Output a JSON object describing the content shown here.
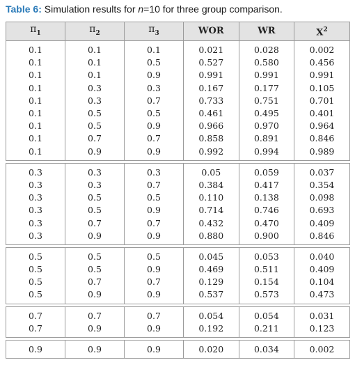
{
  "caption": {
    "label": "Table 6:",
    "text_before": " Simulation results for ",
    "n_var": "n",
    "text_after": "=10 for three group comparison."
  },
  "headers": {
    "pi_symbol": "π",
    "pi1_sub": "1",
    "pi2_sub": "2",
    "pi3_sub": "3",
    "wor": "WOR",
    "wr": "WR",
    "x2_base": "X",
    "x2_sup": "2"
  },
  "groups": [
    [
      [
        "0.1",
        "0.1",
        "0.1",
        "0.021",
        "0.028",
        "0.002"
      ],
      [
        "0.1",
        "0.1",
        "0.5",
        "0.527",
        "0.580",
        "0.456"
      ],
      [
        "0.1",
        "0.1",
        "0.9",
        "0.991",
        "0.991",
        "0.991"
      ],
      [
        "0.1",
        "0.3",
        "0.3",
        "0.167",
        "0.177",
        "0.105"
      ],
      [
        "0.1",
        "0.3",
        "0.7",
        "0.733",
        "0.751",
        "0.701"
      ],
      [
        "0.1",
        "0.5",
        "0.5",
        "0.461",
        "0.495",
        "0.401"
      ],
      [
        "0.1",
        "0.5",
        "0.9",
        "0.966",
        "0.970",
        "0.964"
      ],
      [
        "0.1",
        "0.7",
        "0.7",
        "0.858",
        "0.891",
        "0.846"
      ],
      [
        "0.1",
        "0.9",
        "0.9",
        "0.992",
        "0.994",
        "0.989"
      ]
    ],
    [
      [
        "0.3",
        "0.3",
        "0.3",
        "0.05",
        "0.059",
        "0.037"
      ],
      [
        "0.3",
        "0.3",
        "0.7",
        "0.384",
        "0.417",
        "0.354"
      ],
      [
        "0.3",
        "0.5",
        "0.5",
        "0.110",
        "0.138",
        "0.098"
      ],
      [
        "0.3",
        "0.5",
        "0.9",
        "0.714",
        "0.746",
        "0.693"
      ],
      [
        "0.3",
        "0.7",
        "0.7",
        "0.432",
        "0.470",
        "0.409"
      ],
      [
        "0.3",
        "0.9",
        "0.9",
        "0.880",
        "0.900",
        "0.846"
      ]
    ],
    [
      [
        "0.5",
        "0.5",
        "0.5",
        "0.045",
        "0.053",
        "0.040"
      ],
      [
        "0.5",
        "0.5",
        "0.9",
        "0.469",
        "0.511",
        "0.409"
      ],
      [
        "0.5",
        "0.7",
        "0.7",
        "0.129",
        "0.154",
        "0.104"
      ],
      [
        "0.5",
        "0.9",
        "0.9",
        "0.537",
        "0.573",
        "0.473"
      ]
    ],
    [
      [
        "0.7",
        "0.7",
        "0.7",
        "0.054",
        "0.054",
        "0.031"
      ],
      [
        "0.7",
        "0.9",
        "0.9",
        "0.192",
        "0.211",
        "0.123"
      ]
    ],
    [
      [
        "0.9",
        "0.9",
        "0.9",
        "0.020",
        "0.034",
        "0.002"
      ]
    ]
  ]
}
